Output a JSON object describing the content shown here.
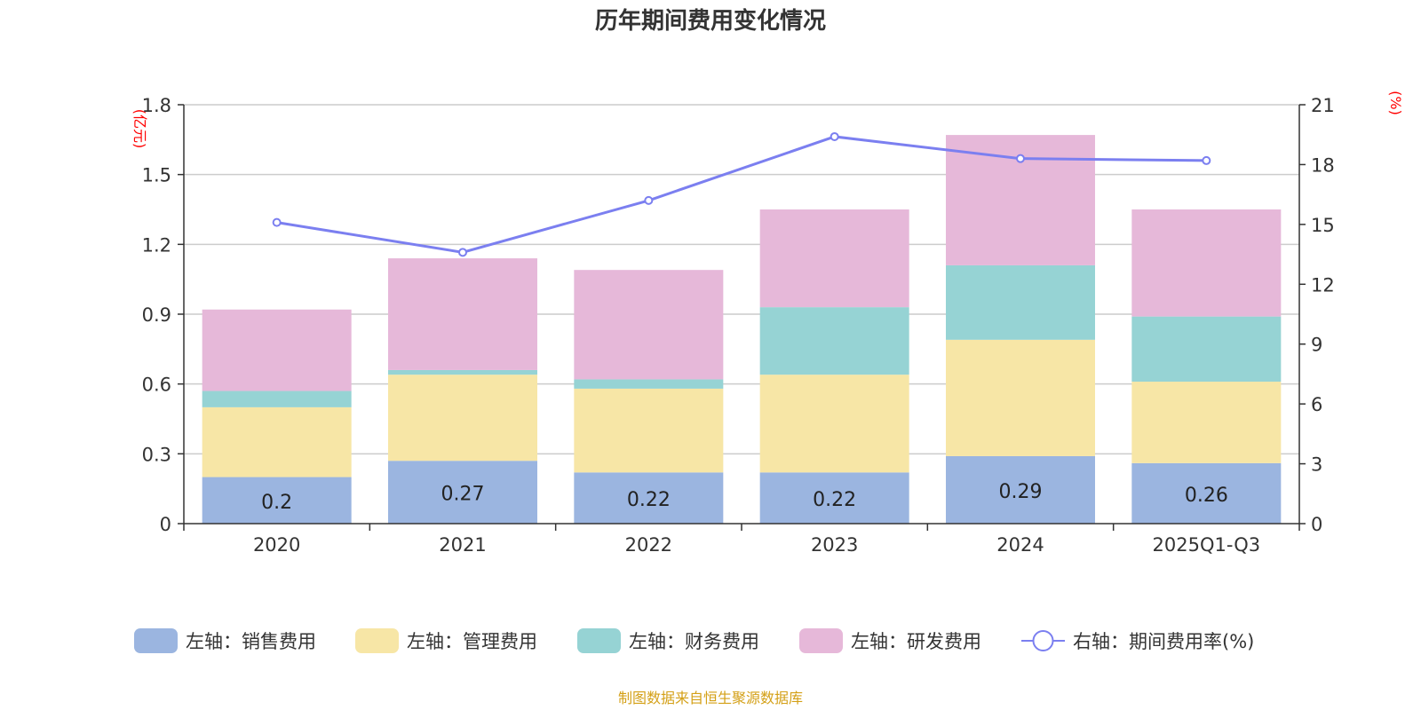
{
  "chart_data": {
    "type": "bar",
    "stacked": true,
    "title": "历年期间费用变化情况",
    "categories": [
      "2020",
      "2021",
      "2022",
      "2023",
      "2024",
      "2025Q1-Q3"
    ],
    "series": [
      {
        "name": "左轴：销售费用",
        "axis": "left",
        "color": "#9bb5e0",
        "values": [
          0.2,
          0.27,
          0.22,
          0.22,
          0.29,
          0.26
        ],
        "show_labels": true
      },
      {
        "name": "左轴：管理费用",
        "axis": "left",
        "color": "#f7e6a6",
        "values": [
          0.3,
          0.37,
          0.36,
          0.42,
          0.5,
          0.35
        ]
      },
      {
        "name": "左轴：财务费用",
        "axis": "left",
        "color": "#96d3d4",
        "values": [
          0.07,
          0.02,
          0.04,
          0.29,
          0.32,
          0.28
        ]
      },
      {
        "name": "左轴：研发费用",
        "axis": "left",
        "color": "#e6b8d9",
        "values": [
          0.35,
          0.48,
          0.47,
          0.42,
          0.56,
          0.46
        ]
      }
    ],
    "line_series": {
      "name": "右轴：期间费用率(%)",
      "axis": "right",
      "color": "#7b7ff0",
      "values": [
        15.1,
        13.6,
        16.2,
        19.4,
        18.3,
        18.2
      ]
    },
    "left_axis": {
      "unit": "(亿元)",
      "ylim": [
        0,
        1.8
      ],
      "ticks": [
        "0",
        "0.3",
        "0.6",
        "0.9",
        "1.2",
        "1.5",
        "1.8"
      ]
    },
    "right_axis": {
      "unit": "(%)",
      "ylim": [
        0,
        21
      ],
      "ticks": [
        "0",
        "3",
        "6",
        "9",
        "12",
        "15",
        "18",
        "21"
      ]
    },
    "grid": true,
    "legend_position": "bottom-center"
  },
  "footer": {
    "source": "制图数据来自恒生聚源数据库"
  }
}
